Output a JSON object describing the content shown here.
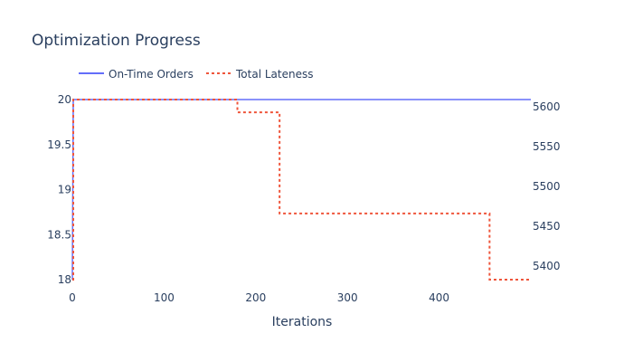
{
  "chart_data": {
    "type": "line",
    "title": "Optimization Progress",
    "xlabel": "Iterations",
    "ylabel": "",
    "y2label": "",
    "xlim": [
      0,
      500
    ],
    "ylim": [
      18,
      20
    ],
    "y2lim": [
      5383,
      5609
    ],
    "grid": false,
    "legend_position": "top-left",
    "x_ticks": [
      0,
      100,
      200,
      300,
      400
    ],
    "x_tick_labels": [
      "0",
      "100",
      "200",
      "300",
      "400"
    ],
    "y_ticks": [
      18,
      18.5,
      19,
      19.5,
      20
    ],
    "y_tick_labels": [
      "18",
      "18.5",
      "19",
      "19.5",
      "20"
    ],
    "y2_ticks": [
      5400,
      5450,
      5500,
      5550,
      5600
    ],
    "y2_tick_labels": [
      "5400",
      "5450",
      "5500",
      "5550",
      "5600"
    ],
    "series": [
      {
        "name": "On-Time Orders",
        "axis": "y",
        "color": "#636efa",
        "dash": "solid",
        "shape": "linear",
        "x": [
          0,
          1,
          500
        ],
        "y": [
          18,
          20,
          20
        ]
      },
      {
        "name": "Total Lateness",
        "axis": "y2",
        "color": "#ef553b",
        "dash": "dot",
        "shape": "hv",
        "x": [
          0,
          1,
          180,
          226,
          455,
          500
        ],
        "y": [
          5383,
          5609,
          5593,
          5466,
          5383,
          5383
        ]
      }
    ]
  }
}
